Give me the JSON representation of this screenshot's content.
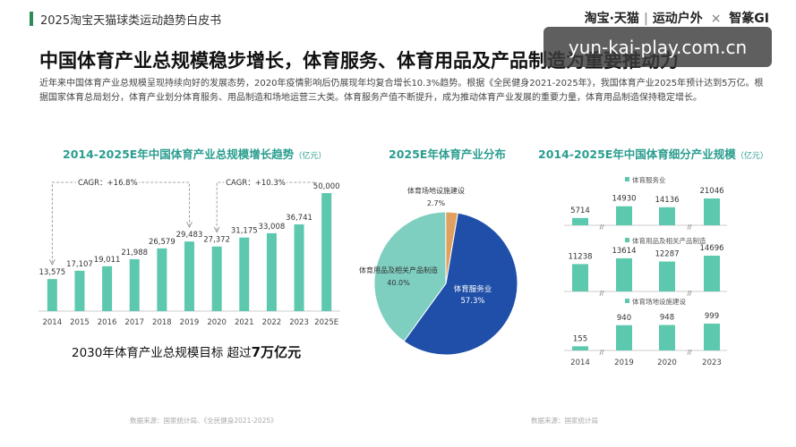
{
  "header": {
    "report_title": "2025淘宝天猫球类运动趋势白皮书",
    "brand": "淘宝·天猫",
    "brand_section": "运动户外",
    "brand_sep": "×",
    "brand_partner": "智篆GI"
  },
  "watermark": "yun-kai-play.com.cn",
  "headline": "中国体育产业总规模稳步增长，体育服务、体育用品及产品制造为重要推动力",
  "intro": "近年来中国体育产业总规模呈现持续向好的发展态势，2020年疫情影响后仍展现年均复合增长10.3%趋势。根据《全民健身2021-2025年》，我国体育产业2025年预计达到5万亿。根据国家体育总局划分，体育产业划分体育服务、用品制造和场地运营三大类。体育服务产值不断提升，成为推动体育产业发展的重要力量，体育用品制造保持稳定增长。",
  "colors": {
    "accent": "#2a9d8f",
    "bar": "#5cc8ae",
    "pie_service": "#1f4fa8",
    "pie_goods": "#7ecfc0",
    "pie_venue": "#e0a060"
  },
  "panels": {
    "left": {
      "title": "2014-2025E年中国体育产业总规模增长趋势",
      "unit": "（亿元）"
    },
    "middle": {
      "title": "2025E年体育产业分布"
    },
    "right": {
      "title": "2014-2025E年中国体育细分产业规模",
      "unit": "（亿元）"
    }
  },
  "goal": {
    "text": "2030年体育产业总规模目标 超过",
    "highlight": "7万亿元"
  },
  "sources": {
    "left": "数据来源：国家统计局、《全民健身2021-2025》",
    "right": "数据来源：国家统计局"
  },
  "chart_data": [
    {
      "type": "bar",
      "title": "2014-2025E年中国体育产业总规模增长趋势",
      "unit": "（亿元）",
      "categories": [
        "2014",
        "2015",
        "2016",
        "2017",
        "2018",
        "2019",
        "2020",
        "2021",
        "2022",
        "2023",
        "2025E"
      ],
      "values": [
        13575,
        17107,
        19011,
        21988,
        26579,
        29483,
        27372,
        31175,
        33008,
        36741,
        50000
      ],
      "value_labels": [
        "13,575",
        "17,107",
        "19,011",
        "21,988",
        "26,579",
        "29,483",
        "27,372",
        "31,175",
        "33,008",
        "36,741",
        "50,000"
      ],
      "ylim": [
        0,
        50000
      ],
      "annotations": [
        "CAGR：+16.8%",
        "CAGR：+10.3%"
      ]
    },
    {
      "type": "pie",
      "title": "2025E年体育产业分布",
      "slices": [
        {
          "label": "体育服务业",
          "value": 57.3,
          "value_label": "57.3%"
        },
        {
          "label": "体育用品及相关产品制造",
          "value": 40.0,
          "value_label": "40.0%"
        },
        {
          "label": "体育场地设施建设",
          "value": 2.7,
          "value_label": "2.7%"
        }
      ]
    },
    {
      "type": "bar",
      "title": "2014-2025E年中国体育细分产业规模",
      "unit": "（亿元）",
      "categories": [
        "2014",
        "2019",
        "2020",
        "2023"
      ],
      "series": [
        {
          "name": "体育服务业",
          "values": [
            5714,
            14930,
            14136,
            21046
          ],
          "value_labels": [
            "5714",
            "14930",
            "14136",
            "21046"
          ]
        },
        {
          "name": "体育用品及相关产品制造",
          "values": [
            11238,
            13614,
            12287,
            14696
          ],
          "value_labels": [
            "11238",
            "13614",
            "12287",
            "14696"
          ]
        },
        {
          "name": "体育场地设施建设",
          "values": [
            155,
            940,
            948,
            999
          ],
          "value_labels": [
            "155",
            "940",
            "948",
            "999"
          ]
        }
      ],
      "axis_break_mark": "//"
    }
  ]
}
